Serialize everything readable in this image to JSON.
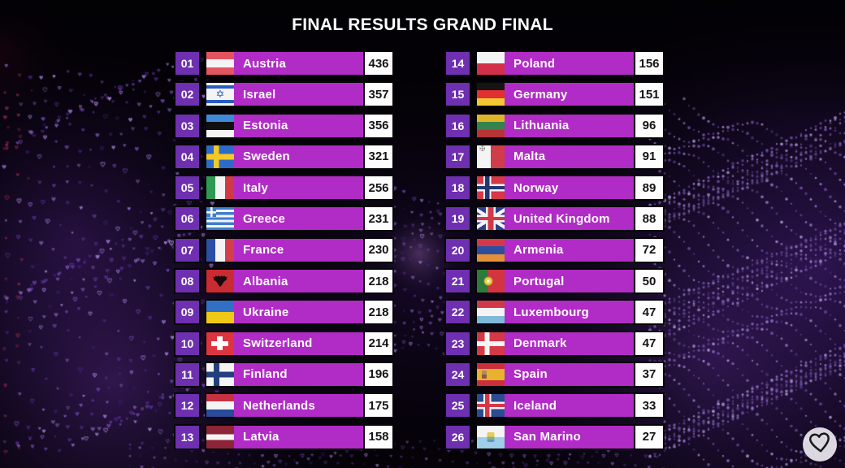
{
  "title": "FINAL RESULTS GRAND FINAL",
  "colors": {
    "row_bar": "#b12bc6",
    "rank_box": "#6e2fb0",
    "score_box_bg": "#fdfdfd",
    "score_text": "#141414",
    "row_text": "#ffffff",
    "background": "#050208"
  },
  "icons": {
    "heart_logo": "heart-outline",
    "star_of_david": "✡",
    "maltese_cross": "✠"
  },
  "results": [
    {
      "rank": "01",
      "country": "Austria",
      "score": 436,
      "flag": "austria"
    },
    {
      "rank": "02",
      "country": "Israel",
      "score": 357,
      "flag": "israel",
      "emblem": "✡"
    },
    {
      "rank": "03",
      "country": "Estonia",
      "score": 356,
      "flag": "estonia"
    },
    {
      "rank": "04",
      "country": "Sweden",
      "score": 321,
      "flag": "sweden"
    },
    {
      "rank": "05",
      "country": "Italy",
      "score": 256,
      "flag": "italy"
    },
    {
      "rank": "06",
      "country": "Greece",
      "score": 231,
      "flag": "greece"
    },
    {
      "rank": "07",
      "country": "France",
      "score": 230,
      "flag": "france"
    },
    {
      "rank": "08",
      "country": "Albania",
      "score": 218,
      "flag": "albania"
    },
    {
      "rank": "09",
      "country": "Ukraine",
      "score": 218,
      "flag": "ukraine"
    },
    {
      "rank": "10",
      "country": "Switzerland",
      "score": 214,
      "flag": "switzerland"
    },
    {
      "rank": "11",
      "country": "Finland",
      "score": 196,
      "flag": "finland"
    },
    {
      "rank": "12",
      "country": "Netherlands",
      "score": 175,
      "flag": "netherlands"
    },
    {
      "rank": "13",
      "country": "Latvia",
      "score": 158,
      "flag": "latvia"
    },
    {
      "rank": "14",
      "country": "Poland",
      "score": 156,
      "flag": "poland"
    },
    {
      "rank": "15",
      "country": "Germany",
      "score": 151,
      "flag": "germany"
    },
    {
      "rank": "16",
      "country": "Lithuania",
      "score": 96,
      "flag": "lithuania"
    },
    {
      "rank": "17",
      "country": "Malta",
      "score": 91,
      "flag": "malta",
      "emblem": "✠"
    },
    {
      "rank": "18",
      "country": "Norway",
      "score": 89,
      "flag": "norway"
    },
    {
      "rank": "19",
      "country": "United Kingdom",
      "score": 88,
      "flag": "uk"
    },
    {
      "rank": "20",
      "country": "Armenia",
      "score": 72,
      "flag": "armenia"
    },
    {
      "rank": "21",
      "country": "Portugal",
      "score": 50,
      "flag": "portugal"
    },
    {
      "rank": "22",
      "country": "Luxembourg",
      "score": 47,
      "flag": "luxembourg"
    },
    {
      "rank": "23",
      "country": "Denmark",
      "score": 47,
      "flag": "denmark"
    },
    {
      "rank": "24",
      "country": "Spain",
      "score": 37,
      "flag": "spain"
    },
    {
      "rank": "25",
      "country": "Iceland",
      "score": 33,
      "flag": "iceland"
    },
    {
      "rank": "26",
      "country": "San Marino",
      "score": 27,
      "flag": "sanmarino"
    }
  ],
  "layout": {
    "left_column_count": 13
  }
}
